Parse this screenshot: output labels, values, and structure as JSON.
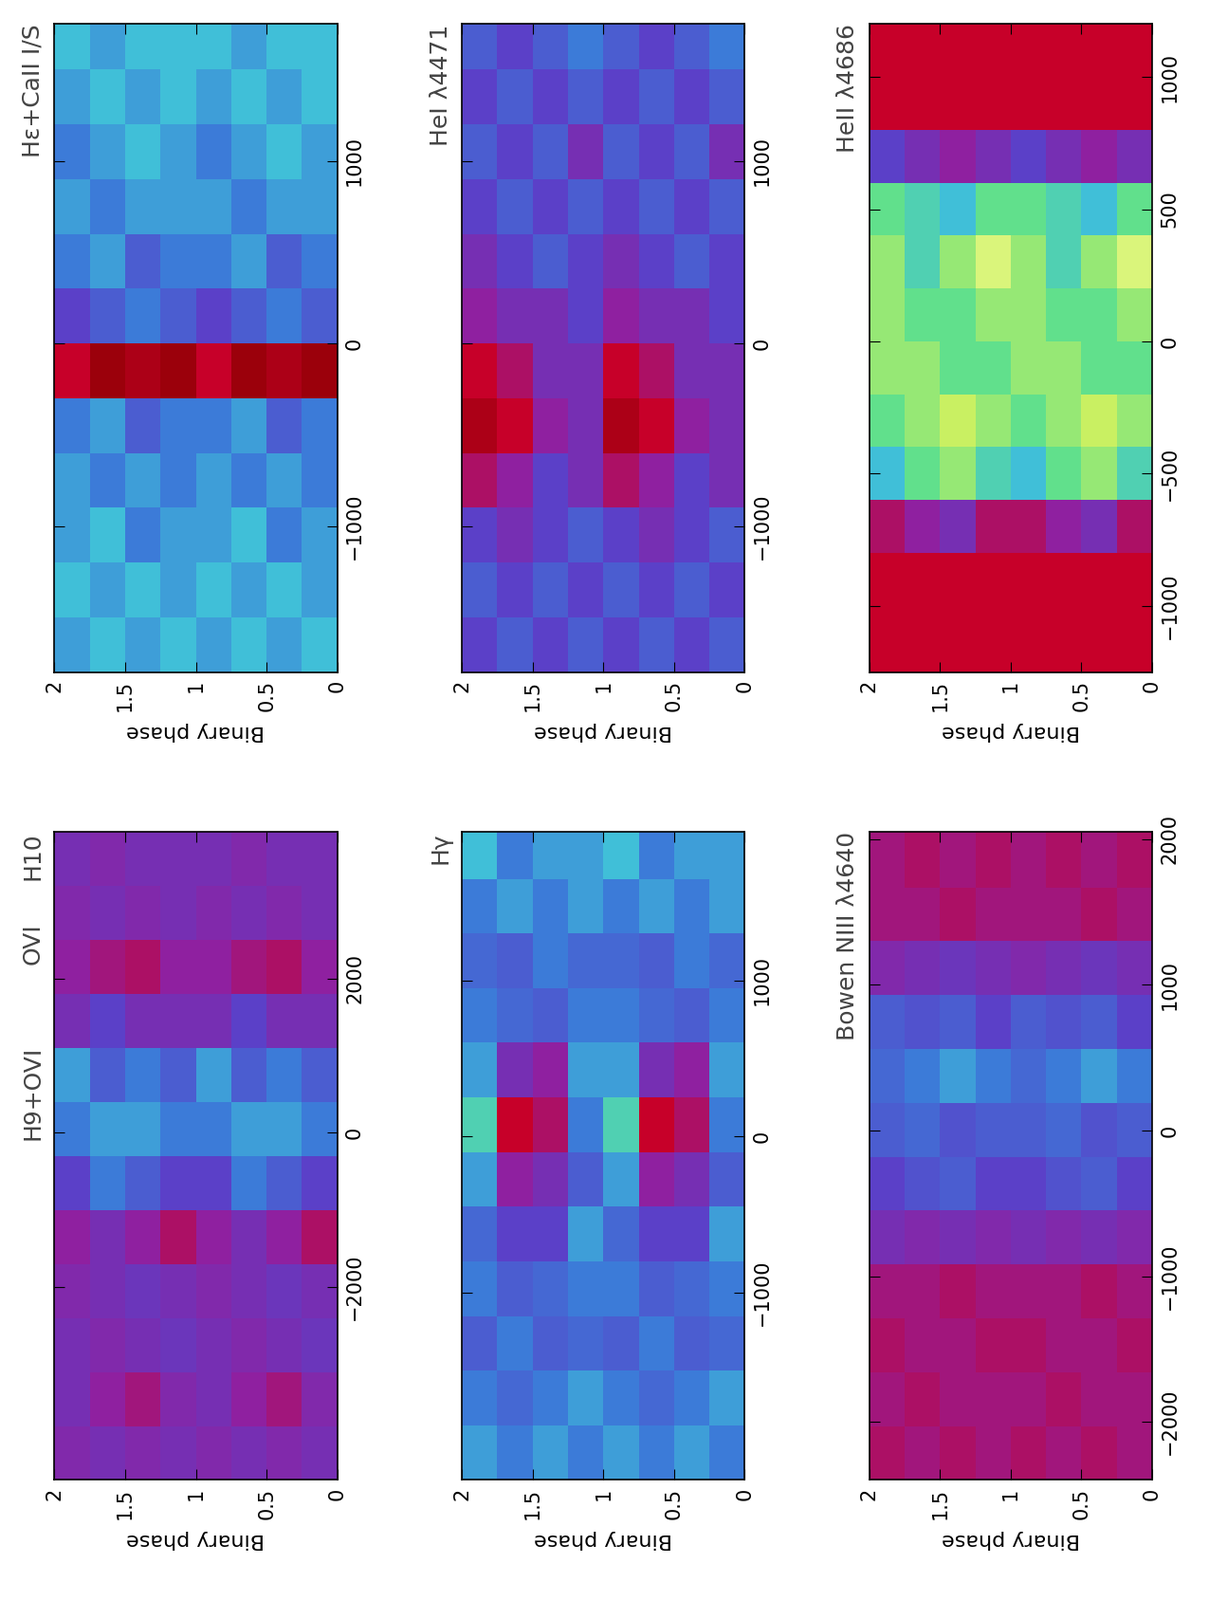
{
  "chart_data": [
    {
      "type": "heatmap",
      "title": "Hε+CaII I/S",
      "xlabel": "Binary phase",
      "xlim": [
        2,
        0
      ],
      "xticks": [
        0,
        0.5,
        1,
        1.5,
        2
      ],
      "ylim": [
        -1800,
        1750
      ],
      "yticks": [
        {
          "value": -1000,
          "label": "−1000"
        },
        0,
        1000
      ],
      "color_range": [
        0,
        1
      ],
      "phase_edges": [
        0,
        0.25,
        0.5,
        0.75,
        1,
        1.25,
        1.5,
        1.75,
        2
      ],
      "velocity_edges": [
        -1800,
        -1500,
        -1200,
        -900,
        -600,
        -300,
        0,
        300,
        600,
        900,
        1200,
        1500,
        1750
      ],
      "cells": [
        [
          0.55,
          0.5,
          0.5,
          0.45,
          0.45,
          0.1,
          0.4,
          0.45,
          0.5,
          0.5,
          0.55,
          0.55
        ],
        [
          0.5,
          0.55,
          0.45,
          0.5,
          0.4,
          0.12,
          0.45,
          0.4,
          0.5,
          0.55,
          0.5,
          0.55
        ],
        [
          0.55,
          0.5,
          0.55,
          0.45,
          0.5,
          0.1,
          0.4,
          0.5,
          0.45,
          0.5,
          0.55,
          0.5
        ],
        [
          0.5,
          0.55,
          0.5,
          0.5,
          0.45,
          0.15,
          0.35,
          0.45,
          0.5,
          0.45,
          0.5,
          0.55
        ],
        [
          0.55,
          0.5,
          0.5,
          0.45,
          0.45,
          0.1,
          0.4,
          0.45,
          0.5,
          0.5,
          0.55,
          0.55
        ],
        [
          0.5,
          0.55,
          0.45,
          0.5,
          0.4,
          0.12,
          0.45,
          0.4,
          0.5,
          0.55,
          0.5,
          0.55
        ],
        [
          0.55,
          0.5,
          0.55,
          0.45,
          0.5,
          0.1,
          0.4,
          0.5,
          0.45,
          0.5,
          0.55,
          0.5
        ],
        [
          0.5,
          0.55,
          0.5,
          0.5,
          0.45,
          0.15,
          0.35,
          0.45,
          0.5,
          0.45,
          0.5,
          0.55
        ]
      ]
    },
    {
      "type": "heatmap",
      "title": "HeI λ4471",
      "xlabel": "Binary phase",
      "xlim": [
        2,
        0
      ],
      "xticks": [
        0,
        0.5,
        1,
        1.5,
        2
      ],
      "ylim": [
        -1800,
        1750
      ],
      "yticks": [
        {
          "value": -1000,
          "label": "−1000"
        },
        0,
        1000
      ],
      "color_range": [
        0,
        1
      ],
      "phase_edges": [
        0,
        0.25,
        0.5,
        0.75,
        1,
        1.25,
        1.5,
        1.75,
        2
      ],
      "velocity_edges": [
        -1800,
        -1500,
        -1200,
        -900,
        -600,
        -300,
        0,
        300,
        600,
        900,
        1200,
        1500,
        1750
      ],
      "cells": [
        [
          0.4,
          0.35,
          0.4,
          0.3,
          0.3,
          0.3,
          0.35,
          0.35,
          0.4,
          0.3,
          0.4,
          0.45
        ],
        [
          0.35,
          0.4,
          0.35,
          0.35,
          0.25,
          0.3,
          0.3,
          0.4,
          0.35,
          0.4,
          0.35,
          0.4
        ],
        [
          0.4,
          0.35,
          0.3,
          0.25,
          0.15,
          0.2,
          0.3,
          0.35,
          0.4,
          0.35,
          0.4,
          0.35
        ],
        [
          0.35,
          0.4,
          0.35,
          0.2,
          0.12,
          0.15,
          0.25,
          0.3,
          0.35,
          0.4,
          0.35,
          0.4
        ],
        [
          0.4,
          0.35,
          0.4,
          0.3,
          0.3,
          0.3,
          0.35,
          0.35,
          0.4,
          0.3,
          0.4,
          0.45
        ],
        [
          0.35,
          0.4,
          0.35,
          0.35,
          0.25,
          0.3,
          0.3,
          0.4,
          0.35,
          0.4,
          0.35,
          0.4
        ],
        [
          0.4,
          0.35,
          0.3,
          0.25,
          0.15,
          0.2,
          0.3,
          0.35,
          0.4,
          0.35,
          0.4,
          0.35
        ],
        [
          0.35,
          0.4,
          0.35,
          0.2,
          0.12,
          0.15,
          0.25,
          0.3,
          0.35,
          0.4,
          0.35,
          0.4
        ]
      ]
    },
    {
      "type": "heatmap",
      "title": "HeII λ4686",
      "xlabel": "Binary phase",
      "xlim": [
        2,
        0
      ],
      "xticks": [
        0,
        0.5,
        1,
        1.5,
        2
      ],
      "ylim": [
        -1250,
        1200
      ],
      "yticks": [
        {
          "value": -1000,
          "label": "−1000"
        },
        {
          "value": -500,
          "label": "−500"
        },
        0,
        500,
        1000
      ],
      "color_range": [
        0,
        1
      ],
      "phase_edges": [
        0,
        0.25,
        0.5,
        0.75,
        1,
        1.25,
        1.5,
        1.75,
        2
      ],
      "velocity_edges": [
        -1250,
        -1000,
        -800,
        -600,
        -400,
        -200,
        0,
        200,
        400,
        600,
        800,
        1000,
        1200
      ],
      "cells": [
        [
          0.15,
          0.15,
          0.2,
          0.6,
          0.7,
          0.65,
          0.7,
          0.8,
          0.65,
          0.3,
          0.15,
          0.15
        ],
        [
          0.15,
          0.15,
          0.3,
          0.7,
          0.75,
          0.65,
          0.65,
          0.7,
          0.55,
          0.25,
          0.15,
          0.15
        ],
        [
          0.15,
          0.15,
          0.25,
          0.65,
          0.7,
          0.7,
          0.65,
          0.6,
          0.6,
          0.3,
          0.15,
          0.15
        ],
        [
          0.15,
          0.15,
          0.2,
          0.55,
          0.65,
          0.7,
          0.7,
          0.7,
          0.65,
          0.35,
          0.15,
          0.15
        ],
        [
          0.15,
          0.15,
          0.2,
          0.6,
          0.7,
          0.65,
          0.7,
          0.8,
          0.65,
          0.3,
          0.15,
          0.15
        ],
        [
          0.15,
          0.15,
          0.3,
          0.7,
          0.75,
          0.65,
          0.65,
          0.7,
          0.55,
          0.25,
          0.15,
          0.15
        ],
        [
          0.15,
          0.15,
          0.25,
          0.65,
          0.7,
          0.7,
          0.65,
          0.6,
          0.6,
          0.3,
          0.15,
          0.15
        ],
        [
          0.15,
          0.15,
          0.2,
          0.55,
          0.65,
          0.7,
          0.7,
          0.7,
          0.65,
          0.35,
          0.15,
          0.15
        ]
      ]
    },
    {
      "type": "heatmap",
      "title": "H10",
      "annotations": [
        "OVI",
        "H9+OVI"
      ],
      "xlabel": "Binary phase",
      "xlim": [
        2,
        0
      ],
      "xticks": [
        0,
        0.5,
        1,
        1.5,
        2
      ],
      "ylim": [
        -4500,
        3900
      ],
      "yticks": [
        {
          "value": -2000,
          "label": "−2000"
        },
        0,
        2000
      ],
      "color_range": [
        0,
        1
      ],
      "phase_edges": [
        0,
        0.25,
        0.5,
        0.75,
        1,
        1.25,
        1.5,
        1.75,
        2
      ],
      "velocity_edges": [
        -4500,
        -3800,
        -3100,
        -2400,
        -1700,
        -1000,
        -300,
        400,
        1100,
        1800,
        2500,
        3200,
        3900
      ],
      "cells": [
        [
          0.3,
          0.28,
          0.32,
          0.3,
          0.2,
          0.35,
          0.45,
          0.4,
          0.3,
          0.25,
          0.3,
          0.3
        ],
        [
          0.28,
          0.22,
          0.3,
          0.32,
          0.25,
          0.4,
          0.5,
          0.45,
          0.3,
          0.2,
          0.28,
          0.3
        ],
        [
          0.3,
          0.25,
          0.28,
          0.3,
          0.3,
          0.45,
          0.5,
          0.4,
          0.35,
          0.22,
          0.3,
          0.28
        ],
        [
          0.28,
          0.3,
          0.3,
          0.28,
          0.25,
          0.35,
          0.45,
          0.5,
          0.3,
          0.25,
          0.28,
          0.3
        ],
        [
          0.3,
          0.28,
          0.32,
          0.3,
          0.2,
          0.35,
          0.45,
          0.4,
          0.3,
          0.25,
          0.3,
          0.3
        ],
        [
          0.28,
          0.22,
          0.3,
          0.32,
          0.25,
          0.4,
          0.5,
          0.45,
          0.3,
          0.2,
          0.28,
          0.3
        ],
        [
          0.3,
          0.25,
          0.28,
          0.3,
          0.3,
          0.45,
          0.5,
          0.4,
          0.35,
          0.22,
          0.3,
          0.28
        ],
        [
          0.28,
          0.3,
          0.3,
          0.28,
          0.25,
          0.35,
          0.45,
          0.5,
          0.3,
          0.25,
          0.28,
          0.3
        ]
      ]
    },
    {
      "type": "heatmap",
      "title": "Hγ",
      "xlabel": "Binary phase",
      "xlim": [
        2,
        0
      ],
      "xticks": [
        0,
        0.5,
        1,
        1.5,
        2
      ],
      "ylim": [
        -2200,
        1950
      ],
      "yticks": [
        {
          "value": -1000,
          "label": "−1000"
        },
        0,
        1000
      ],
      "color_range": [
        0,
        1
      ],
      "phase_edges": [
        0,
        0.25,
        0.5,
        0.75,
        1,
        1.25,
        1.5,
        1.75,
        2
      ],
      "velocity_edges": [
        -2200,
        -1850,
        -1500,
        -1150,
        -800,
        -450,
        -100,
        250,
        600,
        950,
        1300,
        1650,
        1950
      ],
      "cells": [
        [
          0.45,
          0.5,
          0.42,
          0.45,
          0.5,
          0.4,
          0.45,
          0.5,
          0.45,
          0.42,
          0.5,
          0.5
        ],
        [
          0.5,
          0.45,
          0.4,
          0.42,
          0.35,
          0.3,
          0.2,
          0.25,
          0.4,
          0.45,
          0.45,
          0.5
        ],
        [
          0.45,
          0.42,
          0.45,
          0.4,
          0.35,
          0.25,
          0.15,
          0.3,
          0.42,
          0.4,
          0.5,
          0.45
        ],
        [
          0.5,
          0.45,
          0.4,
          0.45,
          0.42,
          0.5,
          0.6,
          0.5,
          0.45,
          0.42,
          0.45,
          0.55
        ],
        [
          0.45,
          0.5,
          0.42,
          0.45,
          0.5,
          0.4,
          0.45,
          0.5,
          0.45,
          0.42,
          0.5,
          0.5
        ],
        [
          0.5,
          0.45,
          0.4,
          0.42,
          0.35,
          0.3,
          0.2,
          0.25,
          0.4,
          0.45,
          0.45,
          0.5
        ],
        [
          0.45,
          0.42,
          0.45,
          0.4,
          0.35,
          0.25,
          0.15,
          0.3,
          0.42,
          0.4,
          0.5,
          0.45
        ],
        [
          0.5,
          0.45,
          0.4,
          0.45,
          0.42,
          0.5,
          0.6,
          0.5,
          0.45,
          0.42,
          0.45,
          0.55
        ]
      ]
    },
    {
      "type": "heatmap",
      "title": "Bowen NIII λ4640",
      "xlabel": "Binary phase",
      "xlim": [
        2,
        0
      ],
      "xticks": [
        0,
        0.5,
        1,
        1.5,
        2
      ],
      "ylim": [
        -2400,
        2050
      ],
      "yticks": [
        {
          "value": -2000,
          "label": "−2000"
        },
        {
          "value": -1000,
          "label": "−1000"
        },
        0,
        1000,
        2000
      ],
      "color_range": [
        0,
        1
      ],
      "phase_edges": [
        0,
        0.25,
        0.5,
        0.75,
        1,
        1.25,
        1.5,
        1.75,
        2
      ],
      "velocity_edges": [
        -2400,
        -2030,
        -1660,
        -1290,
        -920,
        -550,
        -180,
        190,
        560,
        930,
        1300,
        1670,
        2050
      ],
      "cells": [
        [
          0.22,
          0.22,
          0.2,
          0.22,
          0.28,
          0.35,
          0.4,
          0.45,
          0.35,
          0.3,
          0.22,
          0.2
        ],
        [
          0.2,
          0.22,
          0.22,
          0.2,
          0.3,
          0.4,
          0.38,
          0.5,
          0.4,
          0.32,
          0.2,
          0.22
        ],
        [
          0.22,
          0.2,
          0.22,
          0.22,
          0.28,
          0.38,
          0.42,
          0.45,
          0.38,
          0.3,
          0.22,
          0.2
        ],
        [
          0.2,
          0.22,
          0.2,
          0.22,
          0.3,
          0.35,
          0.4,
          0.42,
          0.4,
          0.28,
          0.22,
          0.22
        ],
        [
          0.22,
          0.22,
          0.2,
          0.22,
          0.28,
          0.35,
          0.4,
          0.45,
          0.35,
          0.3,
          0.22,
          0.2
        ],
        [
          0.2,
          0.22,
          0.22,
          0.2,
          0.3,
          0.4,
          0.38,
          0.5,
          0.4,
          0.32,
          0.2,
          0.22
        ],
        [
          0.22,
          0.2,
          0.22,
          0.22,
          0.28,
          0.38,
          0.42,
          0.45,
          0.38,
          0.3,
          0.22,
          0.2
        ],
        [
          0.2,
          0.22,
          0.2,
          0.22,
          0.3,
          0.35,
          0.4,
          0.42,
          0.4,
          0.28,
          0.22,
          0.22
        ]
      ]
    }
  ]
}
